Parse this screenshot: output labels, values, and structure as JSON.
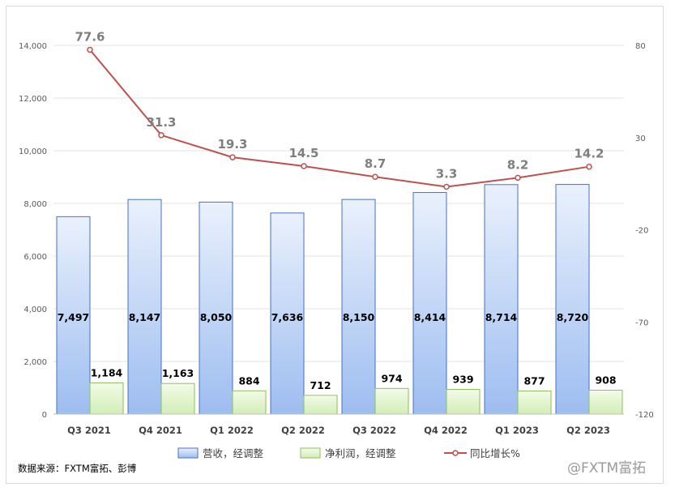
{
  "chart_data": {
    "type": "bar",
    "categories": [
      "Q3 2021",
      "Q4 2021",
      "Q1 2022",
      "Q2 2022",
      "Q3 2022",
      "Q4 2022",
      "Q1 2023",
      "Q2 2023"
    ],
    "series": [
      {
        "name": "营收，经调整",
        "type": "bar",
        "axis": "left",
        "color": "#4472c4",
        "values": [
          7497,
          8147,
          8050,
          7636,
          8150,
          8414,
          8714,
          8720
        ],
        "labels": [
          "7,497",
          "8,147",
          "8,050",
          "7,636",
          "8,150",
          "8,414",
          "8,714",
          "8,720"
        ]
      },
      {
        "name": "净利润，经调整",
        "type": "bar",
        "axis": "left",
        "color": "#a9d18e",
        "values": [
          1184,
          1163,
          884,
          712,
          974,
          939,
          877,
          908
        ],
        "labels": [
          "1,184",
          "1,163",
          "884",
          "712",
          "974",
          "939",
          "877",
          "908"
        ]
      },
      {
        "name": "同比增长%",
        "type": "line",
        "axis": "right",
        "color": "#c0504d",
        "values": [
          77.6,
          31.3,
          19.3,
          14.5,
          8.7,
          3.3,
          8.2,
          14.2
        ],
        "labels": [
          "77.6",
          "31.3",
          "19.3",
          "14.5",
          "8.7",
          "3.3",
          "8.2",
          "14.2"
        ]
      }
    ],
    "y_left": {
      "ylim": [
        0,
        14000
      ],
      "ticks": [
        "0",
        "2,000",
        "4,000",
        "6,000",
        "8,000",
        "10,000",
        "12,000",
        "14,000"
      ]
    },
    "y_right": {
      "ylim": [
        -120,
        80
      ],
      "ticks": [
        "-120",
        "-70",
        "-20",
        "30",
        "80"
      ]
    },
    "grid": true,
    "legend": "bottom"
  },
  "footer": {
    "source": "数据来源：FXTM富拓、彭博",
    "watermark": "@FXTM富拓"
  }
}
